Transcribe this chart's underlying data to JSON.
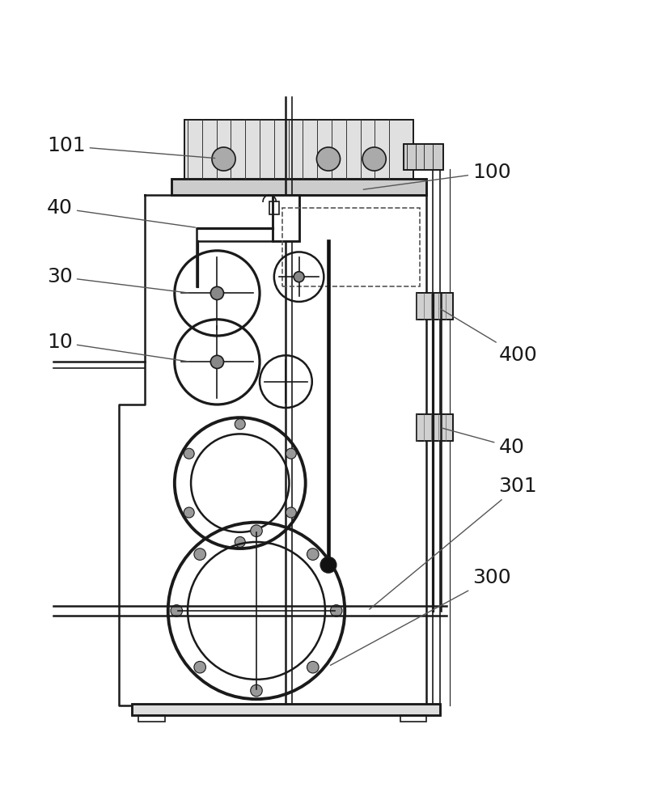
{
  "bg_color": "#ffffff",
  "line_color": "#1a1a1a",
  "label_color": "#1a1a1a",
  "fig_width": 8.12,
  "fig_height": 10.0,
  "dpi": 100,
  "label_fontsize": 18,
  "arrow_color": "#555555"
}
